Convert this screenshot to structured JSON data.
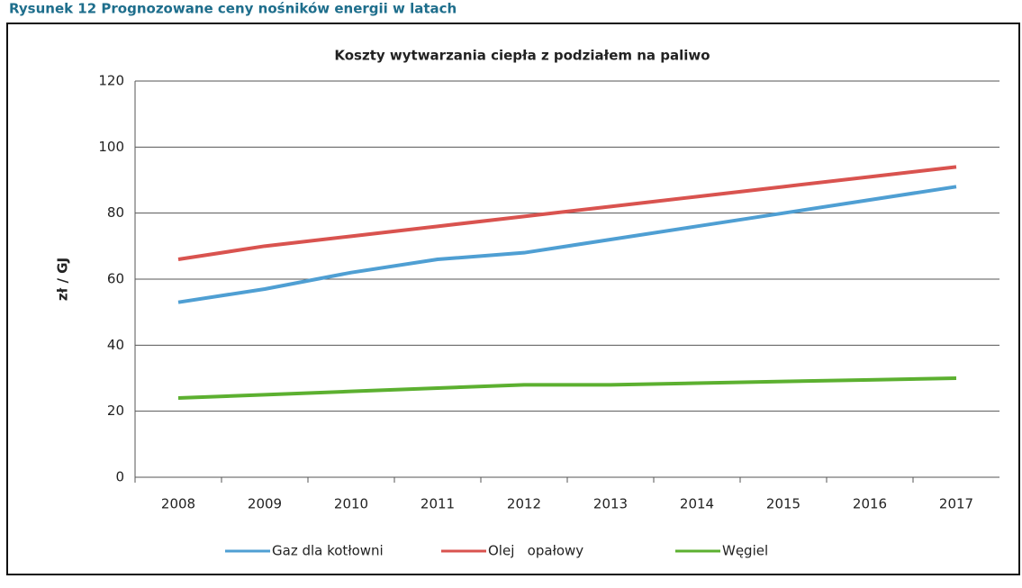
{
  "chart_data": {
    "type": "line",
    "caption": "Rysunek 12 Prognozowane ceny nośników energii w latach",
    "title": "Koszty wytwarzania ciepła z podziałem na paliwo",
    "y_label": "zł / GJ",
    "categories": [
      "2008",
      "2009",
      "2010",
      "2011",
      "2012",
      "2013",
      "2014",
      "2015",
      "2016",
      "2017"
    ],
    "series": [
      {
        "name": "Gaz dla kotłowni",
        "color": "#4f9fd3",
        "values": [
          53,
          57,
          62,
          66,
          68,
          72,
          76,
          80,
          84,
          88
        ]
      },
      {
        "name": "Olej   opałowy",
        "color": "#d9534f",
        "values": [
          66,
          70,
          73,
          76,
          79,
          82,
          85,
          88,
          91,
          94
        ]
      },
      {
        "name": "Węgiel",
        "color": "#5cb030",
        "values": [
          24,
          25,
          26,
          27,
          28,
          28,
          28.5,
          29,
          29.5,
          30
        ]
      }
    ],
    "ylim": [
      0,
      120
    ],
    "yticks": [
      0,
      20,
      40,
      60,
      80,
      100,
      120
    ],
    "grid": true,
    "legend": "bottom"
  }
}
